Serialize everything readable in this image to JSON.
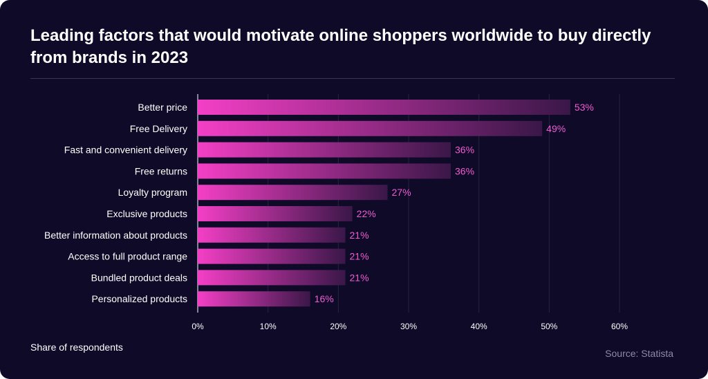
{
  "chart_data": {
    "type": "bar",
    "orientation": "horizontal",
    "title": "Leading factors that would motivate online shoppers worldwide to buy directly from brands in 2023",
    "categories": [
      "Better price",
      "Free Delivery",
      "Fast and convenient delivery",
      "Free returns",
      "Loyalty program",
      "Exclusive products",
      "Better information about products",
      "Access to full product range",
      "Bundled product deals",
      "Personalized products"
    ],
    "values": [
      53,
      49,
      36,
      36,
      27,
      22,
      21,
      21,
      21,
      16
    ],
    "value_labels": [
      "53%",
      "49%",
      "36%",
      "36%",
      "27%",
      "22%",
      "21%",
      "21%",
      "21%",
      "16%"
    ],
    "xlim": [
      0,
      60
    ],
    "x_ticks": [
      0,
      10,
      20,
      30,
      40,
      50,
      60
    ],
    "x_tick_labels": [
      "0%",
      "10%",
      "20%",
      "30%",
      "40%",
      "50%",
      "60%"
    ],
    "grid": true,
    "xlabel": "Share of respondents",
    "ylabel": ""
  },
  "footer": {
    "source": "Source: Statista"
  },
  "colors": {
    "background": "#0e0a27",
    "bar_start": "#f43fc6",
    "bar_end": "#3a1748",
    "value_label": "#f25cd2",
    "grid": "#272342"
  }
}
